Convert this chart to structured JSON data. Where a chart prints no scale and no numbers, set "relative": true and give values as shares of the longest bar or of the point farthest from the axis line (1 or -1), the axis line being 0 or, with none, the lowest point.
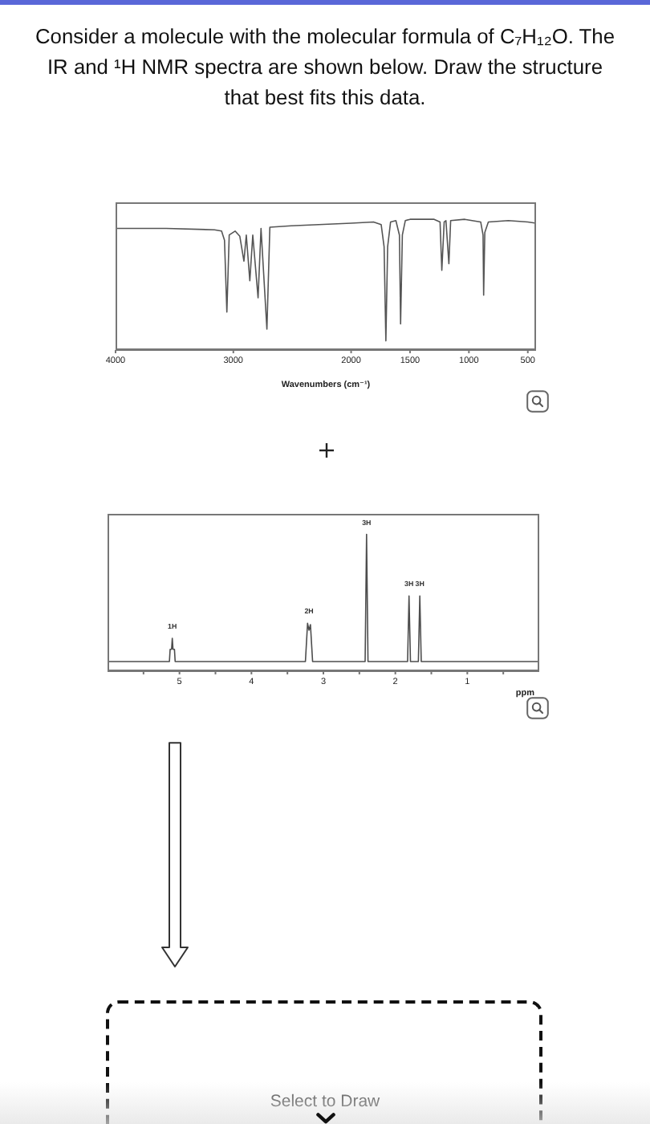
{
  "chart_data": [
    {
      "type": "line",
      "title": "Consider a molecule with the molecular formula of C₇H₁₂O. The IR and ¹H NMR spectra are shown below. Draw the structure that best fits this data.",
      "xlabel": "Wavenumbers (cm⁻¹)",
      "relative": true,
      "x": [
        4000,
        3570,
        3160,
        3100,
        3075,
        3055,
        3035,
        2985,
        2945,
        2910,
        2890,
        2860,
        2835,
        2790,
        2765,
        2715,
        2690,
        2510,
        2000,
        1810,
        1745,
        1720,
        1705,
        1690,
        1665,
        1620,
        1590,
        1580,
        1565,
        1540,
        1500,
        1295,
        1245,
        1230,
        1210,
        1195,
        1170,
        1155,
        1035,
        900,
        880,
        875,
        865,
        835,
        665,
        500,
        430
      ],
      "series": [
        {
          "color": "#555555",
          "values": [
            0.93,
            0.93,
            0.92,
            0.91,
            0.84,
            0.29,
            0.88,
            0.91,
            0.87,
            0.68,
            0.88,
            0.53,
            0.88,
            0.4,
            0.93,
            0.16,
            0.94,
            0.95,
            0.97,
            0.98,
            0.96,
            0.79,
            0.07,
            0.79,
            0.98,
            0.99,
            0.88,
            0.2,
            0.88,
            0.99,
            1.0,
            1.0,
            0.98,
            0.61,
            0.98,
            0.99,
            0.66,
            0.99,
            1.0,
            0.98,
            0.88,
            0.42,
            0.9,
            0.98,
            0.99,
            0.98,
            0.97
          ]
        }
      ],
      "xlim": [
        4000,
        430
      ],
      "xticks": [
        4000,
        3000,
        2000,
        1500,
        1000,
        500
      ],
      "tick_labels": "x"
    },
    {
      "type": "line",
      "xlabel": "ppm",
      "relative": true,
      "x": [
        6,
        5.14,
        5.13,
        5.11,
        5.1,
        5.09,
        5.07,
        5.06,
        3.25,
        3.22,
        3.2,
        3.18,
        3.15,
        2.42,
        2.4,
        2.38,
        1.83,
        1.81,
        1.79,
        1.68,
        1.66,
        1.64,
        0
      ],
      "series": [
        {
          "color": "#4d4d4d",
          "values": [
            0.07,
            0.07,
            0.16,
            0.16,
            0.24,
            0.16,
            0.16,
            0.07,
            0.07,
            0.35,
            0.3,
            0.34,
            0.07,
            0.07,
            1,
            0.07,
            0.07,
            0.55,
            0.07,
            0.07,
            0.55,
            0.07,
            0.07
          ]
        }
      ],
      "xlim": [
        6,
        0
      ],
      "xticks": [
        {
          "value": 5.5,
          "label": null
        },
        5,
        {
          "value": 4.5,
          "label": null
        },
        4,
        {
          "value": 3.5,
          "label": null
        },
        3,
        {
          "value": 2.5,
          "label": null
        },
        2,
        {
          "value": 1.5,
          "label": null
        },
        1,
        {
          "value": 0.5,
          "label": null
        }
      ],
      "tick_labels": "x",
      "annotations": [
        {
          "text": "1H",
          "x": 5.1,
          "y": 0.24
        },
        {
          "text": "2H",
          "x": 3.2,
          "y": 0.35
        },
        {
          "text": "3H",
          "x": 2.4,
          "y": 1
        },
        {
          "text": "3H",
          "x": 1.81,
          "y": 0.55
        },
        {
          "text": "3H",
          "x": 1.66,
          "y": 0.55
        },
        "Select to Draw"
      ]
    }
  ]
}
